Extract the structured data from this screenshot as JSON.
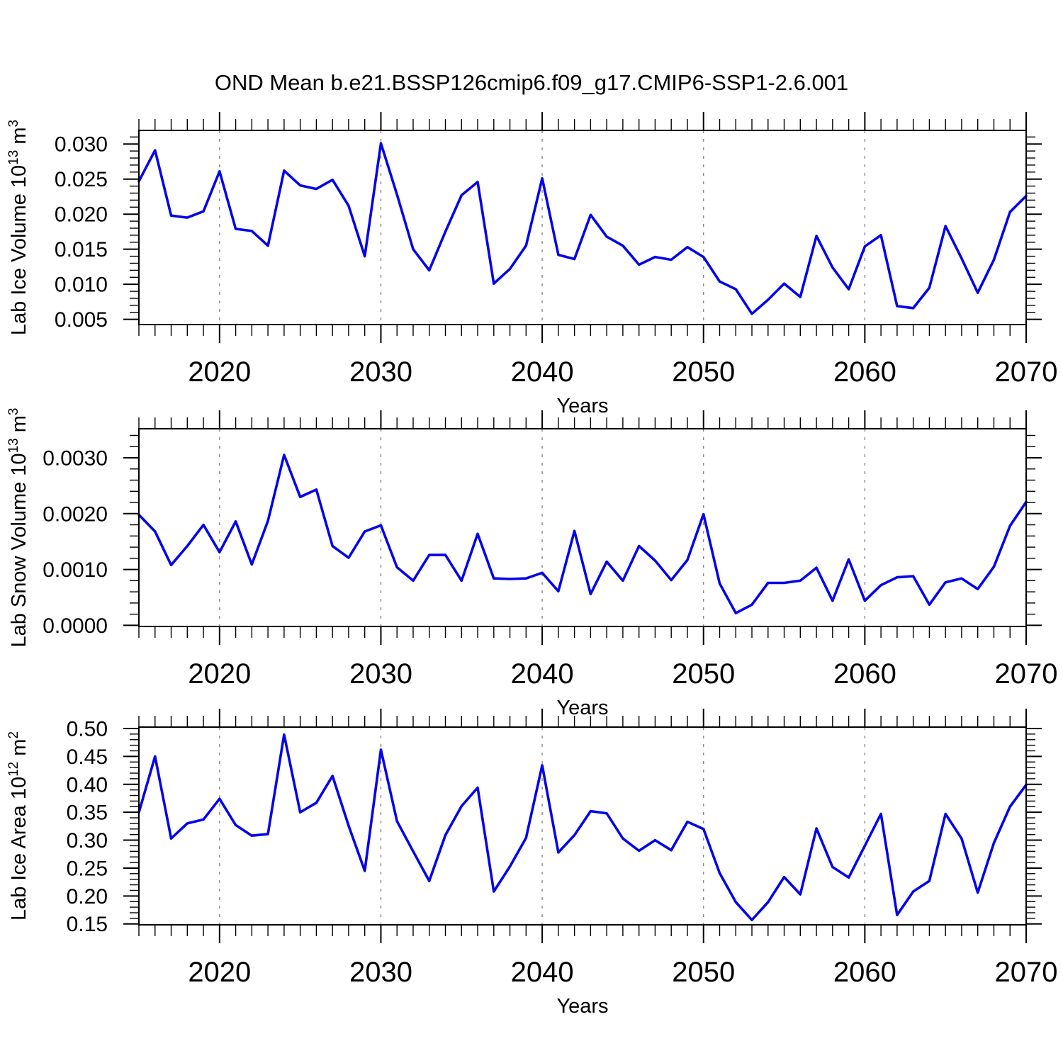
{
  "page": {
    "title": "OND Mean b.e21.BSSP126cmip6.f09_g17.CMIP6-SSP1-2.6.001"
  },
  "style": {
    "line_color": "#0505e8",
    "grid_color": "#8c8c8c",
    "axis_color": "#000000",
    "background": "#ffffff"
  },
  "years": [
    2015,
    2016,
    2017,
    2018,
    2019,
    2020,
    2021,
    2022,
    2023,
    2024,
    2025,
    2026,
    2027,
    2028,
    2029,
    2030,
    2031,
    2032,
    2033,
    2034,
    2035,
    2036,
    2037,
    2038,
    2039,
    2040,
    2041,
    2042,
    2043,
    2044,
    2045,
    2046,
    2047,
    2048,
    2049,
    2050,
    2051,
    2052,
    2053,
    2054,
    2055,
    2056,
    2057,
    2058,
    2059,
    2060,
    2061,
    2062,
    2063,
    2064,
    2065,
    2066,
    2067,
    2068,
    2069,
    2070
  ],
  "chart_data": [
    {
      "type": "line",
      "title": "OND Mean b.e21.BSSP126cmip6.f09_g17.CMIP6-SSP1-2.6.001",
      "xlabel": "Years",
      "ylabel_plain": "Lab Ice Volume 10^13 m^3",
      "ylabel_parts": [
        {
          "t": "Lab Ice Volume 10"
        },
        {
          "t": "13",
          "sup": true
        },
        {
          "t": " m"
        },
        {
          "t": "3",
          "sup": true
        }
      ],
      "values": [
        0.0247,
        0.0291,
        0.0198,
        0.0195,
        0.0204,
        0.0261,
        0.0179,
        0.0176,
        0.0155,
        0.0262,
        0.0241,
        0.0236,
        0.0249,
        0.0212,
        0.014,
        0.0301,
        0.0228,
        0.015,
        0.012,
        0.0175,
        0.0227,
        0.0246,
        0.0101,
        0.0122,
        0.0155,
        0.0251,
        0.0142,
        0.0136,
        0.0199,
        0.0168,
        0.0155,
        0.0128,
        0.0139,
        0.0135,
        0.0153,
        0.0139,
        0.0104,
        0.0093,
        0.0058,
        0.0078,
        0.0101,
        0.0082,
        0.0169,
        0.0124,
        0.0093,
        0.0154,
        0.017,
        0.0069,
        0.0066,
        0.0095,
        0.0183,
        0.0137,
        0.0088,
        0.0135,
        0.0203,
        0.0226
      ],
      "ylim": [
        0.00426,
        0.03194
      ],
      "ytick_major": [
        0.005,
        0.01,
        0.015,
        0.02,
        0.025,
        0.03
      ],
      "ytick_labels": [
        "0.005",
        "0.010",
        "0.015",
        "0.020",
        "0.025",
        "0.030"
      ],
      "ytick_minor_step": 0.001,
      "xlim": [
        2015,
        2070
      ],
      "xtick_major": [
        2020,
        2030,
        2040,
        2050,
        2060,
        2070
      ],
      "xtick_labels": [
        "2020",
        "2030",
        "2040",
        "2050",
        "2060",
        "2070"
      ],
      "grid_years": [
        2020,
        2030,
        2040,
        2050,
        2060
      ],
      "grid_style": "dashed-vertical"
    },
    {
      "type": "line",
      "title": "",
      "xlabel": "Years",
      "ylabel_plain": "Lab Snow Volume 10^13 m^3",
      "ylabel_parts": [
        {
          "t": "Lab Snow Volume 10"
        },
        {
          "t": "13",
          "sup": true
        },
        {
          "t": " m"
        },
        {
          "t": "3",
          "sup": true
        }
      ],
      "values": [
        0.00198,
        0.00168,
        0.00108,
        0.00142,
        0.0018,
        0.00131,
        0.00186,
        0.00109,
        0.00187,
        0.00305,
        0.0023,
        0.00243,
        0.00142,
        0.00121,
        0.00168,
        0.00179,
        0.00104,
        0.0008,
        0.00126,
        0.00126,
        0.0008,
        0.00164,
        0.00084,
        0.00083,
        0.00084,
        0.00094,
        0.00061,
        0.00169,
        0.00056,
        0.00114,
        0.0008,
        0.00142,
        0.00116,
        0.00081,
        0.00117,
        0.00199,
        0.00075,
        0.00022,
        0.00037,
        0.00076,
        0.00076,
        0.0008,
        0.00103,
        0.00044,
        0.00118,
        0.00044,
        0.00072,
        0.00086,
        0.00088,
        0.00037,
        0.00077,
        0.00084,
        0.00065,
        0.00105,
        0.00178,
        0.00221
      ],
      "ylim": [
        -2e-05,
        0.00352
      ],
      "ytick_major": [
        0.0,
        0.001,
        0.002,
        0.003
      ],
      "ytick_labels": [
        "0.0000",
        "0.0010",
        "0.0020",
        "0.0030"
      ],
      "ytick_minor_step": 0.0002,
      "xlim": [
        2015,
        2070
      ],
      "xtick_major": [
        2020,
        2030,
        2040,
        2050,
        2060,
        2070
      ],
      "xtick_labels": [
        "2020",
        "2030",
        "2040",
        "2050",
        "2060",
        "2070"
      ],
      "grid_years": [
        2020,
        2030,
        2040,
        2050,
        2060
      ],
      "grid_style": "dashed-vertical"
    },
    {
      "type": "line",
      "title": "",
      "xlabel": "Years",
      "ylabel_plain": "Lab Ice Area 10^12 m^2",
      "ylabel_parts": [
        {
          "t": "Lab Ice Area 10"
        },
        {
          "t": "12",
          "sup": true
        },
        {
          "t": " m"
        },
        {
          "t": "2",
          "sup": true
        }
      ],
      "values": [
        0.35,
        0.45,
        0.303,
        0.33,
        0.337,
        0.374,
        0.327,
        0.308,
        0.311,
        0.489,
        0.35,
        0.367,
        0.415,
        0.326,
        0.245,
        0.462,
        0.334,
        0.28,
        0.227,
        0.309,
        0.361,
        0.394,
        0.208,
        0.253,
        0.304,
        0.434,
        0.278,
        0.309,
        0.352,
        0.348,
        0.303,
        0.281,
        0.3,
        0.282,
        0.333,
        0.32,
        0.241,
        0.189,
        0.157,
        0.189,
        0.234,
        0.203,
        0.321,
        0.252,
        0.233,
        0.29,
        0.347,
        0.166,
        0.208,
        0.227,
        0.347,
        0.303,
        0.206,
        0.295,
        0.36,
        0.399
      ],
      "ylim": [
        0.1484,
        0.5025
      ],
      "ytick_major": [
        0.15,
        0.2,
        0.25,
        0.3,
        0.35,
        0.4,
        0.45,
        0.5
      ],
      "ytick_labels": [
        "0.15",
        "0.20",
        "0.25",
        "0.30",
        "0.35",
        "0.40",
        "0.45",
        "0.50"
      ],
      "ytick_minor_step": 0.01,
      "xlim": [
        2015,
        2070
      ],
      "xtick_major": [
        2020,
        2030,
        2040,
        2050,
        2060,
        2070
      ],
      "xtick_labels": [
        "2020",
        "2030",
        "2040",
        "2050",
        "2060",
        "2070"
      ],
      "grid_years": [
        2020,
        2030,
        2040,
        2050,
        2060
      ],
      "grid_style": "dashed-vertical"
    }
  ]
}
